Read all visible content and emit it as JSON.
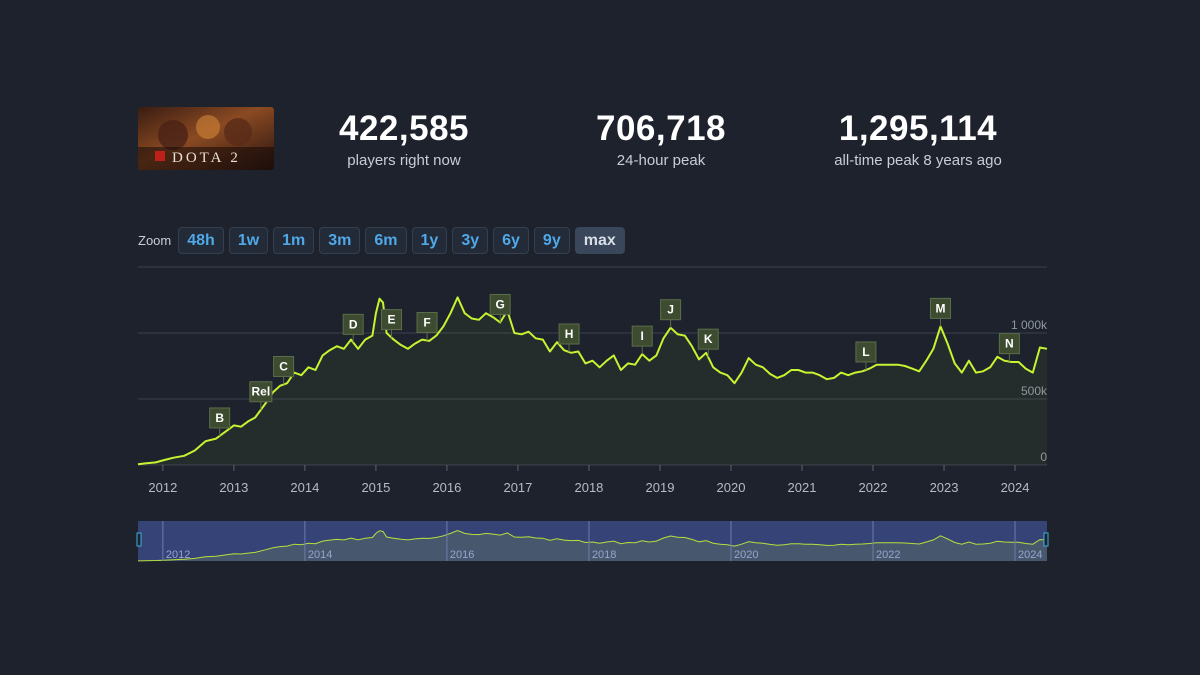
{
  "stats": [
    {
      "value": "422,585",
      "label": "players right now"
    },
    {
      "value": "706,718",
      "label": "24-hour peak"
    },
    {
      "value": "1,295,114",
      "label": "all-time peak 8 years ago"
    }
  ],
  "logo": {
    "text": "DOTA 2"
  },
  "zoom": {
    "label": "Zoom",
    "buttons": [
      "48h",
      "1w",
      "1m",
      "3m",
      "6m",
      "1y",
      "3y",
      "6y",
      "9y",
      "max"
    ],
    "active": "max"
  },
  "colors": {
    "line": "#c6f431",
    "background": "#1d222d",
    "flag": "#3d4c31",
    "navigator": "#3f4f90"
  },
  "chart_data": {
    "type": "line",
    "title": "",
    "xlabel": "",
    "ylabel": "",
    "xlim": [
      2011.65,
      2024.45
    ],
    "ylim": [
      0,
      1500000
    ],
    "y_ticks": [
      {
        "value": 0,
        "label": "0"
      },
      {
        "value": 500000,
        "label": "500k"
      },
      {
        "value": 1000000,
        "label": "1 000k"
      }
    ],
    "x_ticks": [
      "2012",
      "2013",
      "2014",
      "2015",
      "2016",
      "2017",
      "2018",
      "2019",
      "2020",
      "2021",
      "2022",
      "2023",
      "2024"
    ],
    "grid": true,
    "series": [
      {
        "x": [
          2011.65,
          2011.75,
          2011.9,
          2012.0,
          2012.15,
          2012.3,
          2012.45,
          2012.6,
          2012.75,
          2012.85,
          2013.0,
          2013.1,
          2013.2,
          2013.3,
          2013.45,
          2013.55,
          2013.65,
          2013.75,
          2013.85,
          2013.95,
          2014.05,
          2014.15,
          2014.25,
          2014.35,
          2014.45,
          2014.55,
          2014.65,
          2014.75,
          2014.85,
          2014.95,
          2015.0,
          2015.05,
          2015.1,
          2015.15,
          2015.25,
          2015.35,
          2015.45,
          2015.55,
          2015.65,
          2015.75,
          2015.85,
          2015.95,
          2016.05,
          2016.15,
          2016.25,
          2016.35,
          2016.45,
          2016.55,
          2016.65,
          2016.75,
          2016.85,
          2016.95,
          2017.05,
          2017.15,
          2017.25,
          2017.35,
          2017.45,
          2017.55,
          2017.65,
          2017.75,
          2017.85,
          2017.95,
          2018.05,
          2018.15,
          2018.25,
          2018.35,
          2018.45,
          2018.55,
          2018.65,
          2018.75,
          2018.85,
          2018.95,
          2019.05,
          2019.15,
          2019.25,
          2019.35,
          2019.45,
          2019.55,
          2019.65,
          2019.75,
          2019.85,
          2019.95,
          2020.05,
          2020.15,
          2020.25,
          2020.35,
          2020.45,
          2020.55,
          2020.65,
          2020.75,
          2020.85,
          2020.95,
          2021.05,
          2021.15,
          2021.25,
          2021.35,
          2021.45,
          2021.55,
          2021.65,
          2021.75,
          2021.85,
          2021.95,
          2022.05,
          2022.15,
          2022.25,
          2022.35,
          2022.45,
          2022.55,
          2022.65,
          2022.75,
          2022.85,
          2022.95,
          2023.05,
          2023.15,
          2023.25,
          2023.35,
          2023.45,
          2023.55,
          2023.65,
          2023.75,
          2023.85,
          2023.95,
          2024.05,
          2024.15,
          2024.25,
          2024.35,
          2024.45
        ],
        "y": [
          5000,
          12000,
          20000,
          35000,
          55000,
          70000,
          110000,
          180000,
          200000,
          240000,
          300000,
          290000,
          330000,
          360000,
          470000,
          550000,
          600000,
          620000,
          700000,
          680000,
          740000,
          720000,
          830000,
          870000,
          900000,
          880000,
          950000,
          880000,
          950000,
          980000,
          1150000,
          1260000,
          1230000,
          1000000,
          950000,
          910000,
          880000,
          920000,
          950000,
          940000,
          980000,
          1050000,
          1150000,
          1270000,
          1150000,
          1110000,
          1100000,
          1150000,
          1120000,
          1080000,
          1170000,
          1000000,
          990000,
          1010000,
          960000,
          950000,
          860000,
          930000,
          870000,
          850000,
          860000,
          770000,
          790000,
          740000,
          790000,
          830000,
          720000,
          770000,
          760000,
          840000,
          790000,
          830000,
          960000,
          1040000,
          990000,
          980000,
          900000,
          800000,
          850000,
          740000,
          700000,
          680000,
          620000,
          700000,
          810000,
          760000,
          740000,
          690000,
          660000,
          680000,
          720000,
          720000,
          700000,
          700000,
          680000,
          650000,
          660000,
          700000,
          680000,
          700000,
          710000,
          730000,
          760000,
          760000,
          760000,
          760000,
          750000,
          730000,
          710000,
          790000,
          880000,
          1050000,
          920000,
          770000,
          700000,
          790000,
          700000,
          710000,
          740000,
          820000,
          790000,
          780000,
          780000,
          730000,
          700000,
          890000,
          880000
        ]
      }
    ],
    "annotations": [
      {
        "label": "B",
        "x": 2012.8
      },
      {
        "label": "Rel",
        "x": 2013.38
      },
      {
        "label": "C",
        "x": 2013.7
      },
      {
        "label": "D",
        "x": 2014.68
      },
      {
        "label": "E",
        "x": 2015.22
      },
      {
        "label": "F",
        "x": 2015.72
      },
      {
        "label": "G",
        "x": 2016.75
      },
      {
        "label": "H",
        "x": 2017.72
      },
      {
        "label": "I",
        "x": 2018.75
      },
      {
        "label": "J",
        "x": 2019.15
      },
      {
        "label": "K",
        "x": 2019.68
      },
      {
        "label": "L",
        "x": 2021.9
      },
      {
        "label": "M",
        "x": 2022.95
      },
      {
        "label": "N",
        "x": 2023.92
      }
    ],
    "navigator": {
      "x_ticks": [
        "2012",
        "2014",
        "2016",
        "2018",
        "2020",
        "2022",
        "2024"
      ]
    }
  }
}
